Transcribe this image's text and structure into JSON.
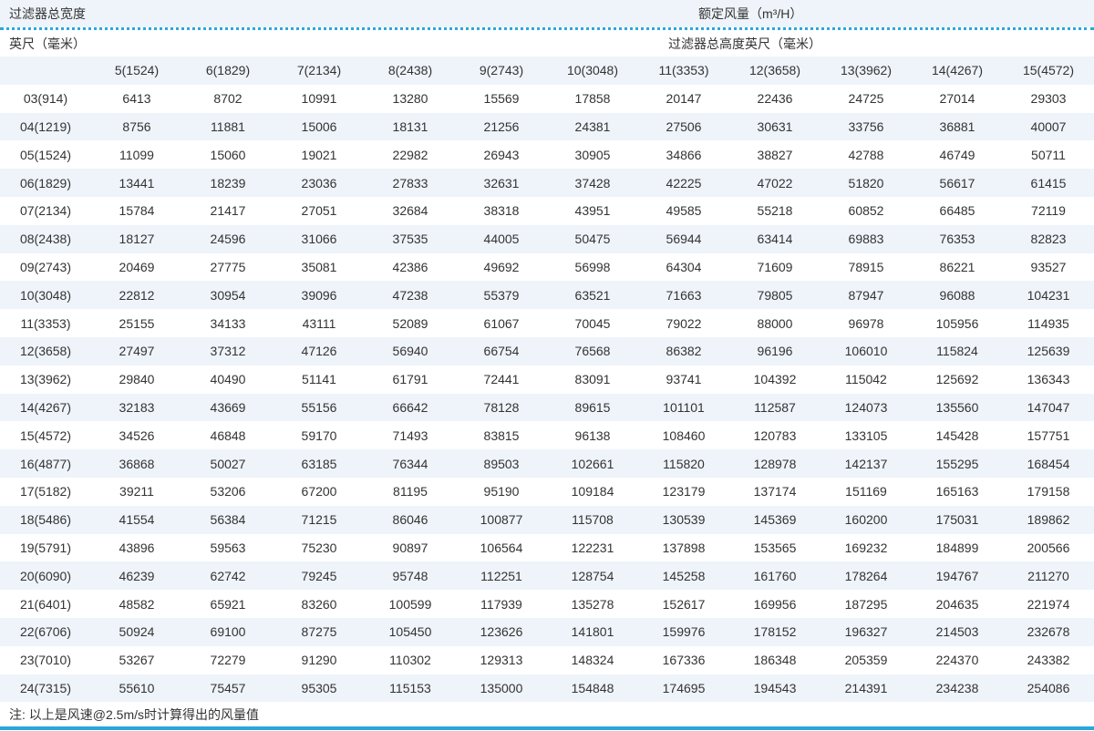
{
  "header": {
    "width_label": "过滤器总宽度",
    "rated_airflow": "额定风量（m³/H）",
    "unit_label": "英尺（毫米）",
    "height_label": "过滤器总高度英尺（毫米）"
  },
  "table": {
    "columns": [
      "",
      "5(1524)",
      "6(1829)",
      "7(2134)",
      "8(2438)",
      "9(2743)",
      "10(3048)",
      "11(3353)",
      "12(3658)",
      "13(3962)",
      "14(4267)",
      "15(4572)"
    ],
    "rows": [
      [
        "03(914)",
        "6413",
        "8702",
        "10991",
        "13280",
        "15569",
        "17858",
        "20147",
        "22436",
        "24725",
        "27014",
        "29303"
      ],
      [
        "04(1219)",
        "8756",
        "11881",
        "15006",
        "18131",
        "21256",
        "24381",
        "27506",
        "30631",
        "33756",
        "36881",
        "40007"
      ],
      [
        "05(1524)",
        "11099",
        "15060",
        "19021",
        "22982",
        "26943",
        "30905",
        "34866",
        "38827",
        "42788",
        "46749",
        "50711"
      ],
      [
        "06(1829)",
        "13441",
        "18239",
        "23036",
        "27833",
        "32631",
        "37428",
        "42225",
        "47022",
        "51820",
        "56617",
        "61415"
      ],
      [
        "07(2134)",
        "15784",
        "21417",
        "27051",
        "32684",
        "38318",
        "43951",
        "49585",
        "55218",
        "60852",
        "66485",
        "72119"
      ],
      [
        "08(2438)",
        "18127",
        "24596",
        "31066",
        "37535",
        "44005",
        "50475",
        "56944",
        "63414",
        "69883",
        "76353",
        "82823"
      ],
      [
        "09(2743)",
        "20469",
        "27775",
        "35081",
        "42386",
        "49692",
        "56998",
        "64304",
        "71609",
        "78915",
        "86221",
        "93527"
      ],
      [
        "10(3048)",
        "22812",
        "30954",
        "39096",
        "47238",
        "55379",
        "63521",
        "71663",
        "79805",
        "87947",
        "96088",
        "104231"
      ],
      [
        "11(3353)",
        "25155",
        "34133",
        "43111",
        "52089",
        "61067",
        "70045",
        "79022",
        "88000",
        "96978",
        "105956",
        "114935"
      ],
      [
        "12(3658)",
        "27497",
        "37312",
        "47126",
        "56940",
        "66754",
        "76568",
        "86382",
        "96196",
        "106010",
        "115824",
        "125639"
      ],
      [
        "13(3962)",
        "29840",
        "40490",
        "51141",
        "61791",
        "72441",
        "83091",
        "93741",
        "104392",
        "115042",
        "125692",
        "136343"
      ],
      [
        "14(4267)",
        "32183",
        "43669",
        "55156",
        "66642",
        "78128",
        "89615",
        "101101",
        "112587",
        "124073",
        "135560",
        "147047"
      ],
      [
        "15(4572)",
        "34526",
        "46848",
        "59170",
        "71493",
        "83815",
        "96138",
        "108460",
        "120783",
        "133105",
        "145428",
        "157751"
      ],
      [
        "16(4877)",
        "36868",
        "50027",
        "63185",
        "76344",
        "89503",
        "102661",
        "115820",
        "128978",
        "142137",
        "155295",
        "168454"
      ],
      [
        "17(5182)",
        "39211",
        "53206",
        "67200",
        "81195",
        "95190",
        "109184",
        "123179",
        "137174",
        "151169",
        "165163",
        "179158"
      ],
      [
        "18(5486)",
        "41554",
        "56384",
        "71215",
        "86046",
        "100877",
        "115708",
        "130539",
        "145369",
        "160200",
        "175031",
        "189862"
      ],
      [
        "19(5791)",
        "43896",
        "59563",
        "75230",
        "90897",
        "106564",
        "122231",
        "137898",
        "153565",
        "169232",
        "184899",
        "200566"
      ],
      [
        "20(6090)",
        "46239",
        "62742",
        "79245",
        "95748",
        "112251",
        "128754",
        "145258",
        "161760",
        "178264",
        "194767",
        "211270"
      ],
      [
        "21(6401)",
        "48582",
        "65921",
        "83260",
        "100599",
        "117939",
        "135278",
        "152617",
        "169956",
        "187295",
        "204635",
        "221974"
      ],
      [
        "22(6706)",
        "50924",
        "69100",
        "87275",
        "105450",
        "123626",
        "141801",
        "159976",
        "178152",
        "196327",
        "214503",
        "232678"
      ],
      [
        "23(7010)",
        "53267",
        "72279",
        "91290",
        "110302",
        "129313",
        "148324",
        "167336",
        "186348",
        "205359",
        "224370",
        "243382"
      ],
      [
        "24(7315)",
        "55610",
        "75457",
        "95305",
        "115153",
        "135000",
        "154848",
        "174695",
        "194543",
        "214391",
        "234238",
        "254086"
      ]
    ]
  },
  "note": "注: 以上是风速@2.5m/s时计算得出的风量值",
  "colors": {
    "accent": "#29a8dc",
    "stripe": "#eef4fa",
    "text": "#333333"
  }
}
